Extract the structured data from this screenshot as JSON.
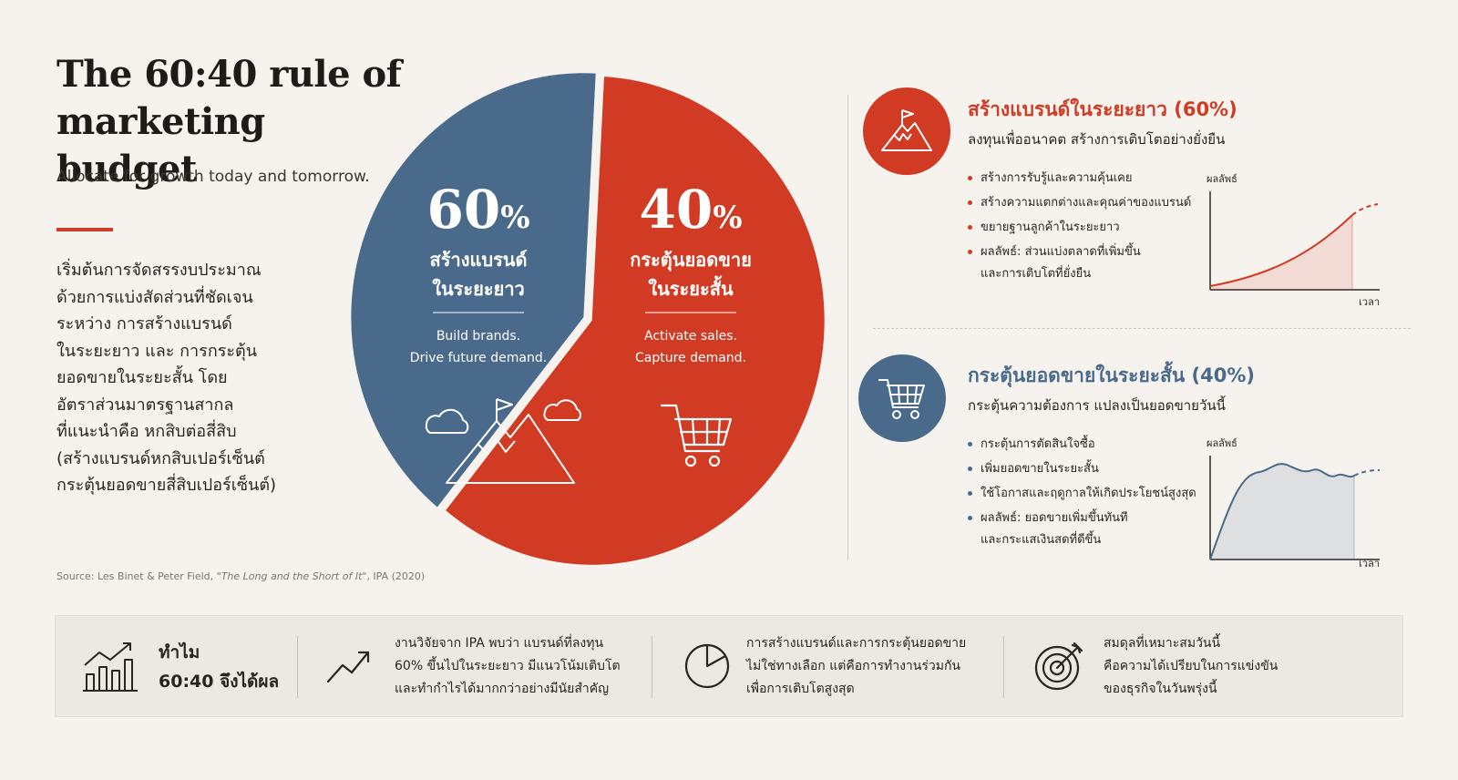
{
  "header": {
    "title": "The 60:40 rule of marketing budget",
    "subtitle": "Allocate for growth today and tomorrow."
  },
  "intro": {
    "lines": [
      "เริ่มต้นการจัดสรรงบประมาณ",
      "ด้วยการแบ่งสัดส่วนที่ชัดเจน",
      "ระหว่าง การสร้างแบรนด์",
      "ในระยะยาว และ การกระตุ้น",
      "ยอดขายในระยะสั้น โดย",
      "อัตราส่วนมาตรฐานสากล",
      "ที่แนะนำคือ หกสิบต่อสี่สิบ",
      "(สร้างแบรนด์หกสิบเปอร์เซ็นต์",
      "กระตุ้นยอดขายสี่สิบเปอร์เซ็นต์)"
    ]
  },
  "source": {
    "prefix": "Source: Les Binet & Peter Field, ",
    "work": "\"The Long and the Short of It\"",
    "suffix": ", IPA (2020)"
  },
  "chart_data": {
    "type": "pie",
    "slices": [
      {
        "value": 60,
        "number": "60",
        "unit": "%",
        "label_line1": "สร้างแบรนด์",
        "label_line2": "ในระยะยาว",
        "desc_line1": "Build brands.",
        "desc_line2": "Drive future demand.",
        "color": "#d13b24"
      },
      {
        "value": 40,
        "number": "40",
        "unit": "%",
        "label_line1": "กระตุ้นยอดขาย",
        "label_line2": "ในระยะสั้น",
        "desc_line1": "Activate sales.",
        "desc_line2": "Capture demand.",
        "color": "#4a6a8c"
      }
    ]
  },
  "panels": {
    "brand": {
      "title": "สร้างแบรนด์ในระยะยาว (60%)",
      "subtitle": "ลงทุนเพื่ออนาคต สร้างการเติบโตอย่างยั่งยืน",
      "bullets": [
        "สร้างการรับรู้และความคุ้นเคย",
        "สร้างความแตกต่างและคุณค่าของแบรนด์",
        "ขยายฐานลูกค้าในระยะยาว",
        "ผลลัพธ์: ส่วนแบ่งตลาดที่เพิ่มขึ้น"
      ],
      "bullet_cont": "และการเติบโตที่ยั่งยืน",
      "y_label": "ผลลัพธ์",
      "x_label": "เวลา",
      "icon": "mountain-flag-icon",
      "color": "#d13b24"
    },
    "sales": {
      "title": "กระตุ้นยอดขายในระยะสั้น (40%)",
      "subtitle": "กระตุ้นความต้องการ แปลงเป็นยอดขายวันนี้",
      "bullets": [
        "กระตุ้นการตัดสินใจซื้อ",
        "เพิ่มยอดขายในระยะสั้น",
        "ใช้โอกาสและฤดูกาลให้เกิดประโยชน์สูงสุด",
        "ผลลัพธ์: ยอดขายเพิ่มขึ้นทันที"
      ],
      "bullet_cont": "และกระแสเงินสดที่ดีขึ้น",
      "y_label": "ผลลัพธ์",
      "x_label": "เวลา",
      "icon": "shopping-cart-icon",
      "color": "#4a6a8c"
    }
  },
  "bottom": {
    "why_line1": "ทำไม",
    "why_line2": "60:40 จึงได้ผล",
    "items": [
      {
        "icon": "trend-up-icon",
        "lines": [
          "งานวิจัยจาก IPA พบว่า แบรนด์ที่ลงทุน",
          "60% ขึ้นไปในระยะยาว มีแนวโน้มเติบโต",
          "และทำกำไรได้มากกว่าอย่างมีนัยสำคัญ"
        ]
      },
      {
        "icon": "pie-chart-icon",
        "lines": [
          "การสร้างแบรนด์และการกระตุ้นยอดขาย",
          "ไม่ใช่ทางเลือก แต่คือการทำงานร่วมกัน",
          "เพื่อการเติบโตสูงสุด"
        ]
      },
      {
        "icon": "target-icon",
        "lines": [
          "สมดุลที่เหมาะสมวันนี้",
          "คือความได้เปรียบในการแข่งขัน",
          "ของธุรกิจในวันพรุ่งนี้"
        ]
      }
    ]
  }
}
